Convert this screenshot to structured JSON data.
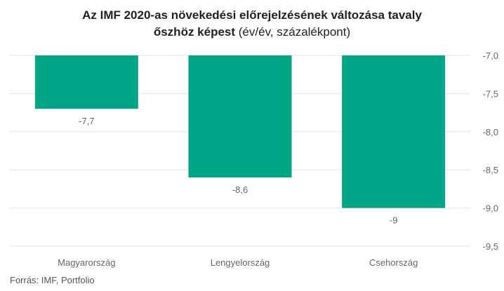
{
  "title_line1": "Az IMF 2020-as növekedési előrejelzésének változása tavaly",
  "title_line2_bold": "őszhöz képest",
  "title_line2_rest": " (év/év, százalékpont)",
  "source": "Forrás: IMF, Portfolio",
  "chart_data": {
    "type": "bar",
    "categories": [
      "Magyarország",
      "Lengyelország",
      "Csehország"
    ],
    "values": [
      -7.7,
      -8.6,
      -9
    ],
    "value_labels": [
      "-7,7",
      "-8,6",
      "-9"
    ],
    "y_ticks": [
      -7.0,
      -7.5,
      -8.0,
      -8.5,
      -9.0,
      -9.5
    ],
    "y_tick_labels": [
      "-7,0",
      "-7,5",
      "-8,0",
      "-8,5",
      "-9,0",
      "-9,5"
    ],
    "ylim": [
      -9.5,
      -7.0
    ],
    "y_axis_position": "right",
    "grid": true,
    "bar_color": "#00a686",
    "grid_color": "#e2e2e2"
  }
}
